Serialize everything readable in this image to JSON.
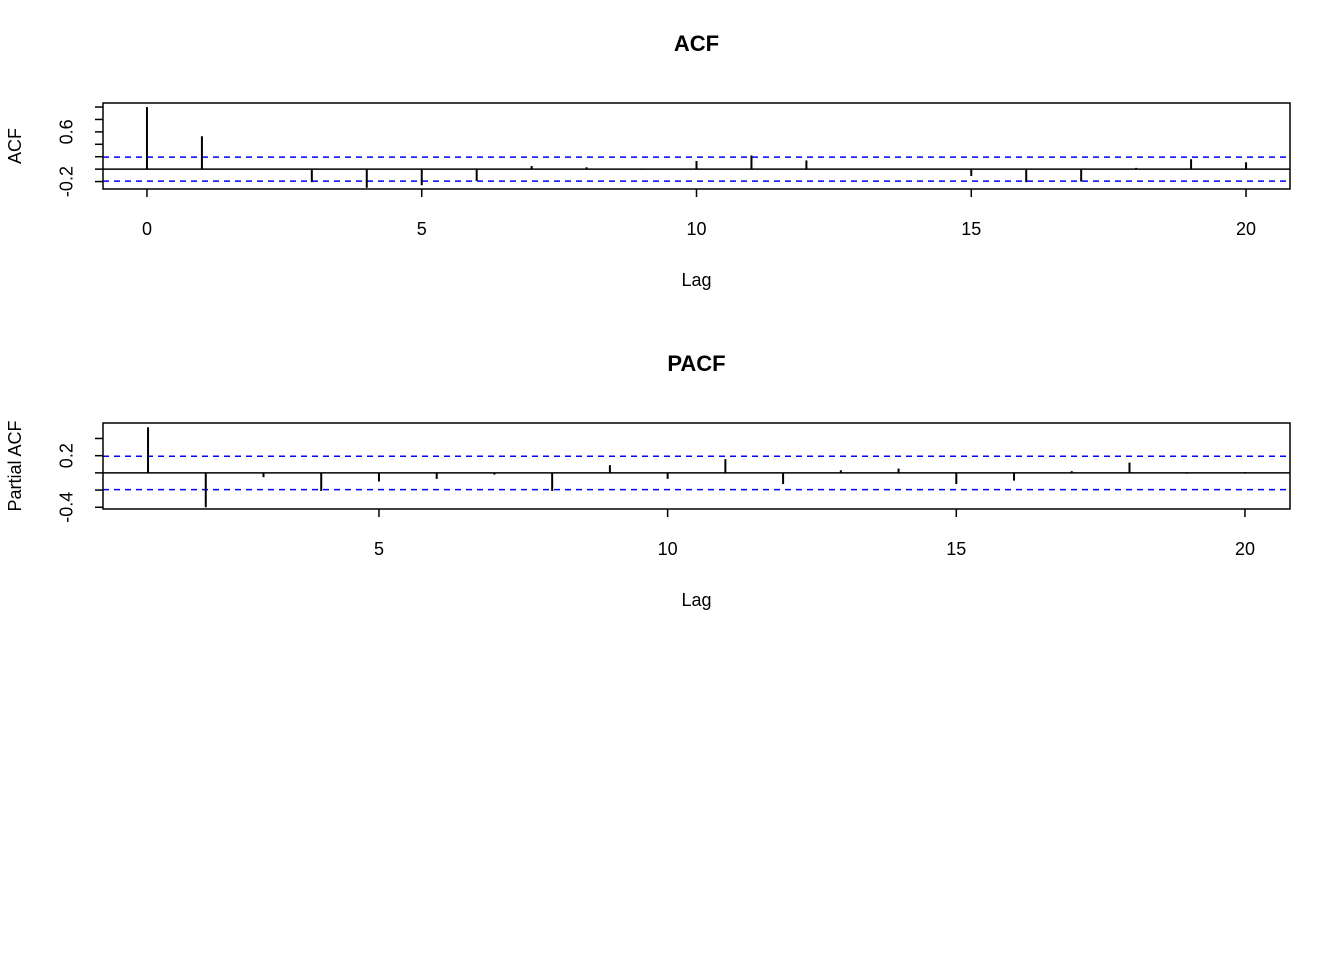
{
  "chart_data": [
    {
      "type": "stem",
      "title": "ACF",
      "xlabel": "Lag",
      "ylabel": "ACF",
      "x": [
        0,
        1,
        2,
        3,
        4,
        5,
        6,
        7,
        8,
        9,
        10,
        11,
        12,
        13,
        14,
        15,
        16,
        17,
        18,
        19,
        20
      ],
      "values": [
        1.0,
        0.53,
        0.01,
        -0.21,
        -0.3,
        -0.26,
        -0.19,
        0.05,
        0.03,
        -0.01,
        0.13,
        0.22,
        0.14,
        0.01,
        0.01,
        -0.11,
        -0.21,
        -0.2,
        0.02,
        0.16,
        0.11
      ],
      "color": "#000000",
      "ci": 0.194,
      "ci_color": "#0000ff",
      "xlim": [
        -0.8,
        20.8
      ],
      "xticks": [
        0,
        5,
        10,
        15,
        20
      ],
      "ylim": [
        -0.32,
        1.065
      ],
      "yticks": [
        -0.2,
        0,
        0.2,
        0.4,
        0.6,
        0.8,
        1
      ]
    },
    {
      "type": "stem",
      "title": "PACF",
      "xlabel": "Lag",
      "ylabel": "Partial ACF",
      "x": [
        1,
        2,
        3,
        4,
        5,
        6,
        7,
        8,
        9,
        10,
        11,
        12,
        13,
        14,
        15,
        16,
        17,
        18,
        19,
        20
      ],
      "values": [
        0.53,
        -0.4,
        -0.05,
        -0.21,
        -0.1,
        -0.07,
        -0.02,
        -0.21,
        0.09,
        -0.07,
        0.16,
        -0.13,
        0.03,
        0.05,
        -0.13,
        -0.09,
        0.02,
        0.12,
        -0.01,
        0.01
      ],
      "color": "#000000",
      "ci": 0.194,
      "ci_color": "#0000ff",
      "xlim": [
        0.22,
        20.78
      ],
      "xticks": [
        5,
        10,
        15,
        20
      ],
      "ylim": [
        -0.42,
        0.58
      ],
      "yticks": [
        -0.4,
        -0.2,
        0,
        0.2,
        0.4
      ]
    }
  ]
}
